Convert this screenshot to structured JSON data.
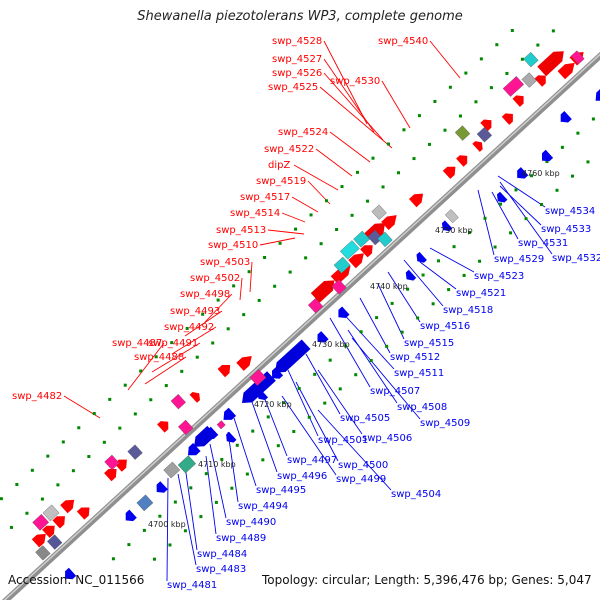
{
  "title": "Shewanella piezotolerans WP3, complete genome",
  "footer": {
    "accession": "Accession: NC_011566",
    "topology": "Topology: circular; Length: 5,396,476 bp; Genes: 5,047"
  },
  "colors": {
    "forward_genes": "#ff0000",
    "reverse_genes": "#0000ee",
    "backbone": "#999999",
    "ticks": "#008800"
  },
  "ruler": [
    "4700 kbp",
    "4710 kbp",
    "4720 kbp",
    "4730 kbp",
    "4740 kbp",
    "4750 kbp",
    "4760 kbp"
  ],
  "forward_labels": [
    "swp_4528",
    "swp_4540",
    "swp_4527",
    "swp_4526",
    "swp_4530",
    "swp_4525",
    "swp_4524",
    "swp_4522",
    "dipZ",
    "swp_4519",
    "swp_4517",
    "swp_4514",
    "swp_4513",
    "swp_4510",
    "swp_4503",
    "swp_4502",
    "swp_4498",
    "swp_4493",
    "swp_4492",
    "swp_4491",
    "swp_4487",
    "swp_4488",
    "swp_4482"
  ],
  "reverse_labels": [
    "swp_4534",
    "swp_4533",
    "swp_4531",
    "swp_4532",
    "swp_4529",
    "swp_4523",
    "swp_4521",
    "swp_4518",
    "swp_4516",
    "swp_4515",
    "swp_4512",
    "swp_4511",
    "swp_4507",
    "swp_4508",
    "swp_4509",
    "swp_4505",
    "swp_4506",
    "swp_4501",
    "swp_4500",
    "swp_4497",
    "swp_4499",
    "swp_4496",
    "swp_4504",
    "swp_4495",
    "swp_4494",
    "swp_4490",
    "swp_4489",
    "swp_4484",
    "swp_4483",
    "swp_4481"
  ]
}
